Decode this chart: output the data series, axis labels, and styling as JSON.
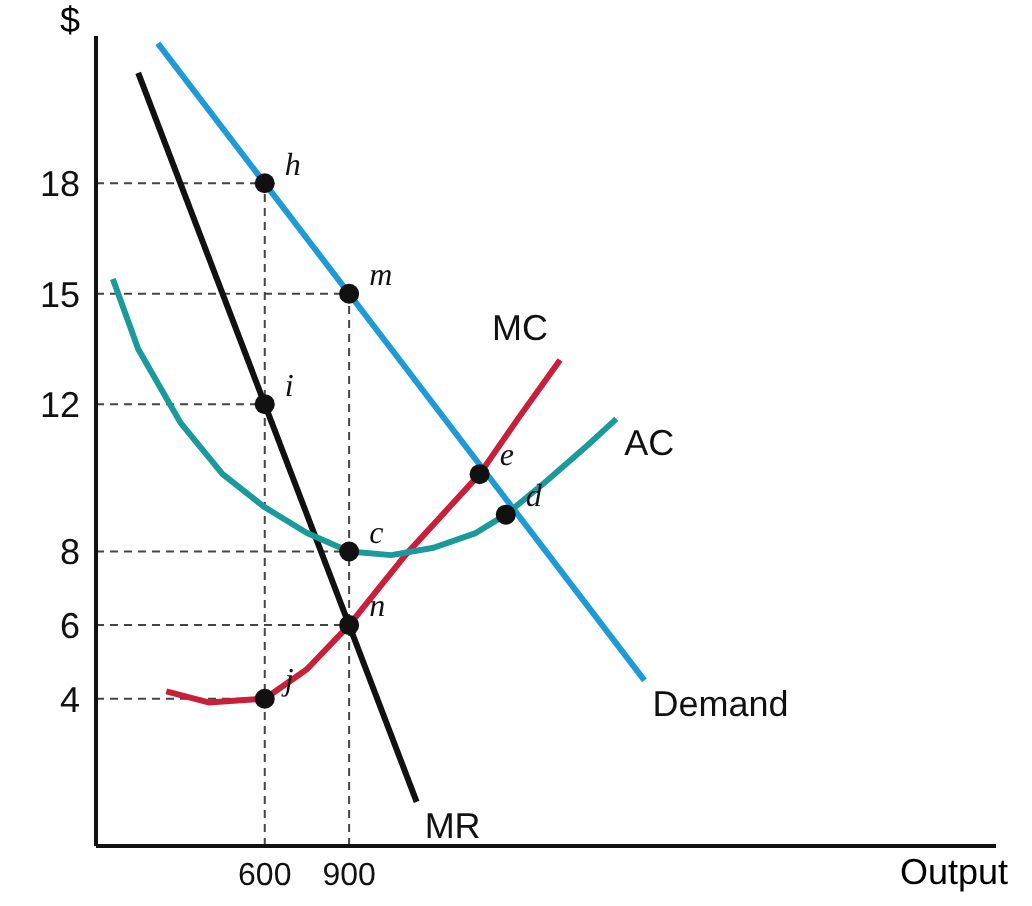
{
  "chart_data": {
    "type": "line",
    "xlabel": "Output",
    "ylabel": "$",
    "xlim": [
      0,
      3200
    ],
    "ylim": [
      0,
      22
    ],
    "xticks": [
      600,
      900
    ],
    "yticks": [
      4,
      6,
      8,
      12,
      15,
      18
    ],
    "grid": false,
    "legend": false,
    "marker": "none",
    "line_style": "solid",
    "series": [
      {
        "name": "Demand",
        "color": "#1e9ad6",
        "x": [
          220,
          1950
        ],
        "values": [
          21.8,
          4.5
        ]
      },
      {
        "name": "MR",
        "color": "#111111",
        "x": [
          150,
          1140
        ],
        "values": [
          21,
          1.2
        ]
      },
      {
        "name": "MC",
        "color": "#c8203a",
        "x": [
          250,
          400,
          600,
          750,
          900,
          1100,
          1364,
          1500,
          1650
        ],
        "values": [
          4.2,
          3.9,
          4,
          4.8,
          6,
          7.9,
          10.1,
          11.6,
          13.2
        ]
      },
      {
        "name": "AC",
        "color": "#1a9a9a",
        "x": [
          60,
          150,
          300,
          450,
          600,
          750,
          900,
          1050,
          1200,
          1350,
          1457,
          1600,
          1750,
          1850
        ],
        "values": [
          15.4,
          13.5,
          11.5,
          10.1,
          9.2,
          8.5,
          8,
          7.9,
          8.1,
          8.5,
          9,
          9.9,
          10.9,
          11.6
        ]
      }
    ],
    "annotations": [
      {
        "text": "h",
        "x": 600,
        "y": 18
      },
      {
        "text": "m",
        "x": 900,
        "y": 15
      },
      {
        "text": "i",
        "x": 600,
        "y": 12
      },
      {
        "text": "e",
        "x": 1364,
        "y": 10.1
      },
      {
        "text": "d",
        "x": 1457,
        "y": 9
      },
      {
        "text": "c",
        "x": 900,
        "y": 8
      },
      {
        "text": "n",
        "x": 900,
        "y": 6
      },
      {
        "text": "j",
        "x": 600,
        "y": 4
      }
    ],
    "ref_lines": [
      {
        "axis": "y",
        "value": 18,
        "line_style": "dashed"
      },
      {
        "axis": "y",
        "value": 15,
        "line_style": "dashed"
      },
      {
        "axis": "y",
        "value": 12,
        "line_style": "dashed"
      },
      {
        "axis": "y",
        "value": 8,
        "line_style": "dashed"
      },
      {
        "axis": "y",
        "value": 6,
        "line_style": "dashed"
      },
      {
        "axis": "y",
        "value": 4,
        "line_style": "dashed"
      },
      {
        "axis": "x",
        "value": 600,
        "line_style": "dashed"
      },
      {
        "axis": "x",
        "value": 900,
        "line_style": "dashed"
      }
    ]
  }
}
